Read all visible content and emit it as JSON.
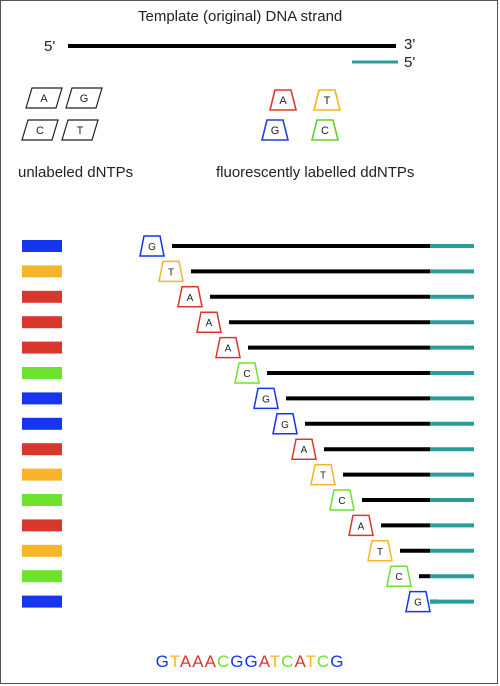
{
  "title": "Template (original) DNA strand",
  "template": {
    "left_end": "5'",
    "right_end": "3'",
    "primer_end": "5'",
    "strand_color": "#000000",
    "primer_color": "#2a9d9a"
  },
  "unlabeled_dntps": {
    "caption": "unlabeled dNTPs",
    "bases": [
      "A",
      "G",
      "C",
      "T"
    ]
  },
  "labelled_ddntps": {
    "caption": "fluorescently labelled ddNTPs",
    "bases": [
      {
        "base": "A",
        "color": "#e03a2e"
      },
      {
        "base": "T",
        "color": "#f2b51b"
      },
      {
        "base": "G",
        "color": "#1f3fe0"
      },
      {
        "base": "C",
        "color": "#63d12f"
      }
    ]
  },
  "colors": {
    "A": "#d9372b",
    "T": "#f7b52b",
    "G": "#1536ee",
    "C": "#6ee22c"
  },
  "fragments": [
    "G",
    "T",
    "A",
    "A",
    "A",
    "C",
    "G",
    "G",
    "A",
    "T",
    "C",
    "A",
    "T",
    "C",
    "G"
  ],
  "sequence": "GTAAACGGATCATCG"
}
